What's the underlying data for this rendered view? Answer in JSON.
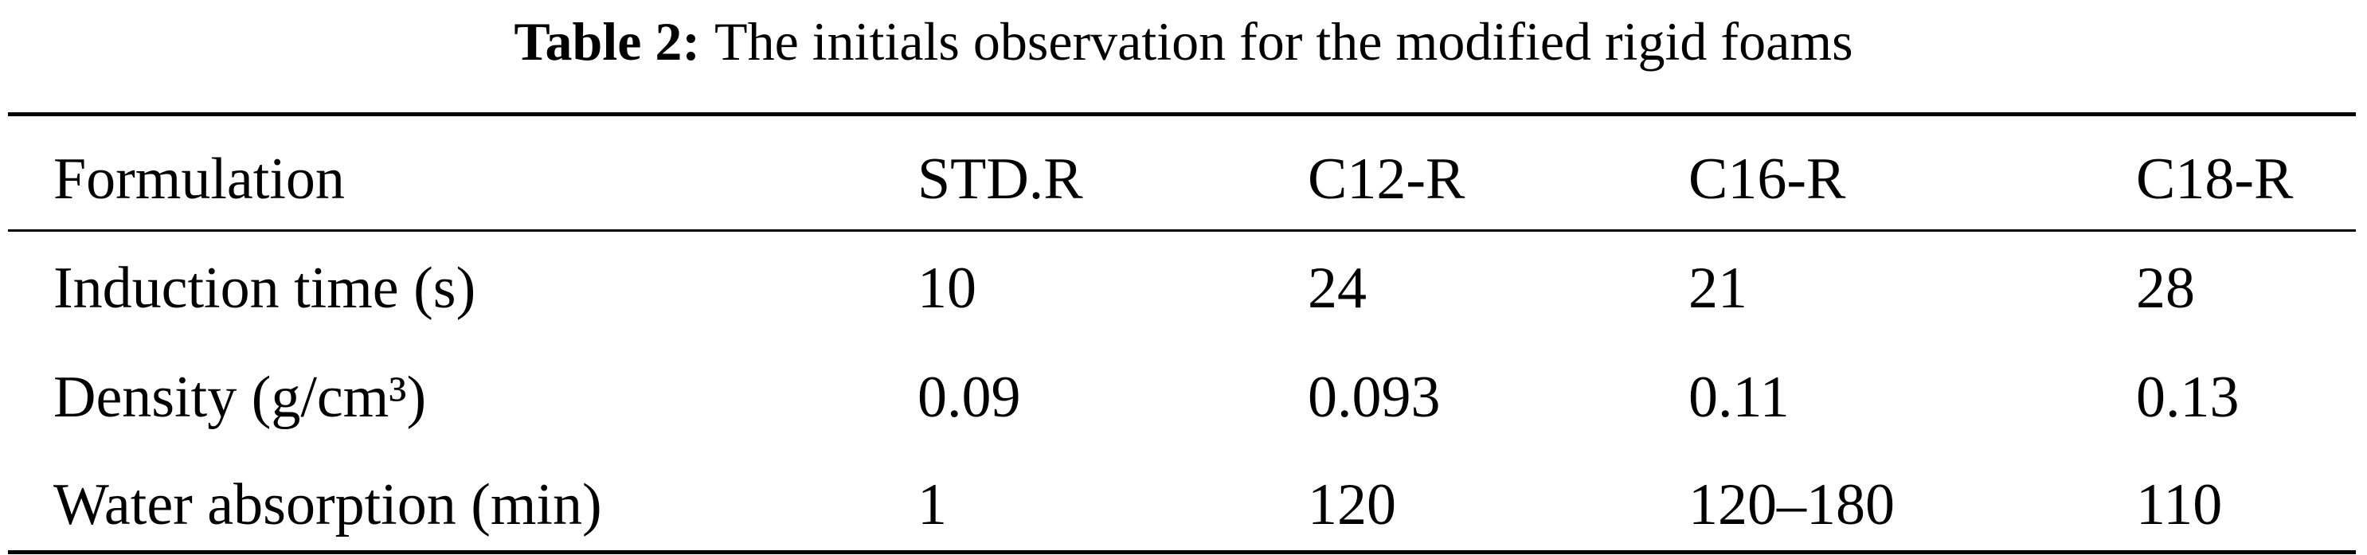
{
  "title": {
    "label": "Table 2:",
    "text": "The initials observation for the modified rigid foams"
  },
  "table": {
    "header": [
      "Formulation",
      "STD.R",
      "C12-R",
      "C16-R",
      "C18-R"
    ],
    "rows": [
      [
        "Induction time (s)",
        "10",
        "24",
        "21",
        "28"
      ],
      [
        "Density (g/cm³)",
        "0.09",
        "0.093",
        "0.11",
        "0.13"
      ],
      [
        "Water absorption (min)",
        "1",
        "120",
        "120–180",
        "110"
      ]
    ]
  }
}
